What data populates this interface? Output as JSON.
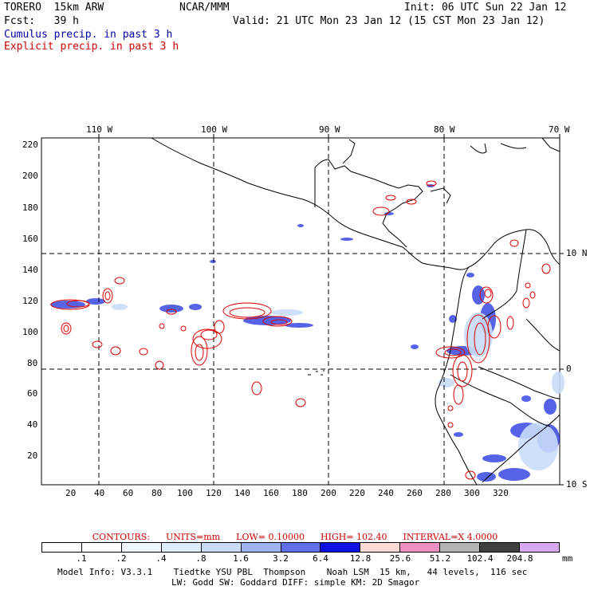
{
  "header": {
    "model": "TORERO  15km ARW",
    "org": "NCAR/MMM",
    "init": "Init: 06 UTC Sun 22 Jan 12",
    "fcst": "Fcst:   39 h",
    "valid": "Valid: 21 UTC Mon 23 Jan 12 (15 CST Mon 23 Jan 12)",
    "line_cumulus": "Cumulus precip. in past 3 h",
    "line_explicit": "Explicit precip. in past 3 h"
  },
  "axes": {
    "top_ticks": [
      "110 W",
      "100 W",
      "90 W",
      "80 W",
      "70 W"
    ],
    "left_ticks": [
      "220",
      "200",
      "180",
      "160",
      "140",
      "120",
      "100",
      "80",
      "60",
      "40",
      "20"
    ],
    "bottom_ticks": [
      "20",
      "40",
      "60",
      "80",
      "100",
      "120",
      "140",
      "160",
      "180",
      "200",
      "220",
      "240",
      "260",
      "280",
      "300",
      "320"
    ],
    "right_ticks": [
      "10 N",
      "0",
      "10 S"
    ]
  },
  "contours": {
    "label": "CONTOURS:",
    "units": "UNITS=mm",
    "low": "LOW= 0.10000",
    "high": "HIGH=  102.40",
    "interval": "INTERVAL=X  4.0000"
  },
  "legend": {
    "values": [
      ".1",
      ".2",
      ".4",
      ".8",
      "1.6",
      "3.2",
      "6.4",
      "12.8",
      "25.6",
      "51.2",
      "102.4",
      "204.8"
    ],
    "unit": "mm",
    "colors": [
      "#ffffff",
      "#ffffff",
      "#f0f6ff",
      "#e0ecff",
      "#c8dcf8",
      "#a0b4f0",
      "#6070e8",
      "#1010e0",
      "#ffd8d8",
      "#f090c0",
      "#b4b4b4",
      "#404040",
      "#d8a8f0"
    ]
  },
  "footer": {
    "line1": "Model Info: V3.3.1    Tiedtke YSU PBL  Thompson    Noah LSM  15 km,   44 levels,  116 sec",
    "line2": "LW: Godd SW: Goddard DIFF: simple KM: 2D Smagor"
  },
  "colors": {
    "cumulus": "#0000aa",
    "explicit": "#cc0000",
    "contour": "#dd0000",
    "precip_blue": "#2030e0"
  }
}
